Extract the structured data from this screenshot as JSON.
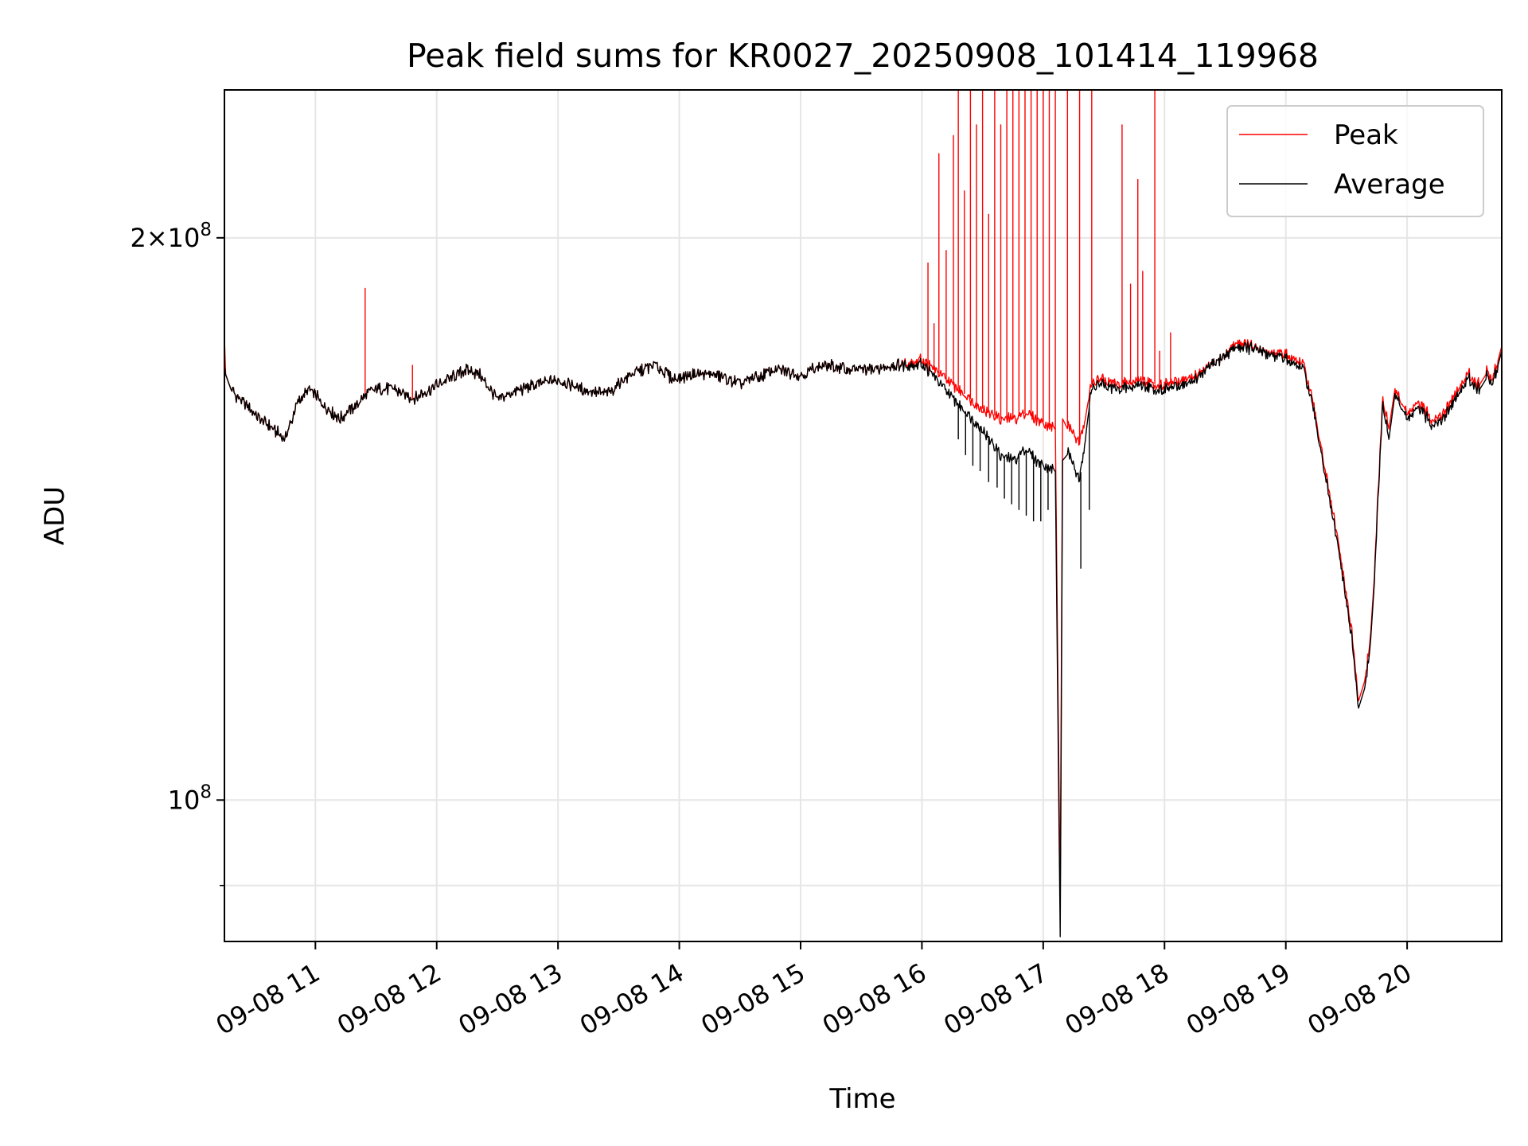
{
  "chart_data": {
    "type": "line",
    "title": "Peak field sums for KR0027_20250908_101414_119968",
    "xlabel": "Time",
    "ylabel": "ADU",
    "x_range_hours": [
      10.25,
      20.78
    ],
    "ylim": [
      84000000,
      240000000
    ],
    "y_scale": "log",
    "grid": true,
    "legend_position": "top-right",
    "x_ticks": [
      "09-08 11",
      "09-08 12",
      "09-08 13",
      "09-08 14",
      "09-08 15",
      "09-08 16",
      "09-08 17",
      "09-08 18",
      "09-08 19",
      "09-08 20"
    ],
    "y_ticks": [
      {
        "base": "2×10",
        "exp": "8",
        "value": 200000000
      },
      {
        "base": "10",
        "exp": "8",
        "value": 100000000
      }
    ],
    "series": [
      {
        "name": "Peak",
        "color": "#ff0000",
        "x_hours": [
          10.25,
          10.26,
          10.3,
          10.45,
          10.6,
          10.75,
          10.85,
          10.95,
          11.1,
          11.2,
          11.35,
          11.42,
          11.5,
          11.65,
          11.8,
          11.95,
          12.1,
          12.25,
          12.35,
          12.5,
          12.7,
          13.0,
          13.2,
          13.4,
          13.6,
          13.8,
          13.95,
          14.1,
          14.3,
          14.5,
          14.8,
          15.0,
          15.2,
          15.4,
          15.6,
          15.8,
          16.0,
          16.05,
          16.15,
          16.3,
          16.5,
          16.65,
          16.75,
          16.85,
          16.95,
          17.1,
          17.14,
          17.16,
          17.2,
          17.3,
          17.4,
          17.45,
          17.6,
          17.7,
          17.8,
          17.9,
          18.0,
          18.2,
          18.4,
          18.5,
          18.6,
          18.8,
          19.0,
          19.15,
          19.25,
          19.35,
          19.45,
          19.55,
          19.6,
          19.65,
          19.7,
          19.73,
          19.8,
          19.85,
          19.9,
          20.0,
          20.1,
          20.2,
          20.3,
          20.4,
          20.5,
          20.55,
          20.6,
          20.65,
          20.7,
          20.75,
          20.78
        ],
        "values": [
          177000000,
          169000000,
          166000000,
          162000000,
          159000000,
          156000000,
          163000000,
          166000000,
          162000000,
          160000000,
          163000000,
          165000000,
          166000000,
          166000000,
          164000000,
          166000000,
          168000000,
          170000000,
          169000000,
          164000000,
          166000000,
          168000000,
          166000000,
          165000000,
          169000000,
          171000000,
          168000000,
          169000000,
          169000000,
          167000000,
          170000000,
          169000000,
          171000000,
          170000000,
          170000000,
          171000000,
          172000000,
          171000000,
          169000000,
          166000000,
          162000000,
          160000000,
          160000000,
          161000000,
          160000000,
          158000000,
          88000000,
          160000000,
          159000000,
          155000000,
          167000000,
          168000000,
          167000000,
          167000000,
          168000000,
          167000000,
          167000000,
          168000000,
          171000000,
          173000000,
          176000000,
          174000000,
          173000000,
          171000000,
          160000000,
          147000000,
          135000000,
          122000000,
          113000000,
          115000000,
          123000000,
          132000000,
          164000000,
          158000000,
          166000000,
          161000000,
          163000000,
          160000000,
          161000000,
          165000000,
          169000000,
          168000000,
          167000000,
          170000000,
          168000000,
          172000000,
          175000000
        ],
        "spikes": [
          {
            "x": 11.41,
            "value": 188000000
          },
          {
            "x": 11.8,
            "value": 171000000
          },
          {
            "x": 16.05,
            "value": 194000000
          },
          {
            "x": 16.1,
            "value": 180000000
          },
          {
            "x": 16.14,
            "value": 222000000
          },
          {
            "x": 16.2,
            "value": 197000000
          },
          {
            "x": 16.26,
            "value": 227000000
          },
          {
            "x": 16.3,
            "value": 240000000
          },
          {
            "x": 16.35,
            "value": 212000000
          },
          {
            "x": 16.4,
            "value": 240000000
          },
          {
            "x": 16.45,
            "value": 230000000
          },
          {
            "x": 16.5,
            "value": 240000000
          },
          {
            "x": 16.55,
            "value": 206000000
          },
          {
            "x": 16.6,
            "value": 240000000
          },
          {
            "x": 16.65,
            "value": 230000000
          },
          {
            "x": 16.7,
            "value": 240000000
          },
          {
            "x": 16.75,
            "value": 240000000
          },
          {
            "x": 16.8,
            "value": 240000000
          },
          {
            "x": 16.85,
            "value": 240000000
          },
          {
            "x": 16.9,
            "value": 240000000
          },
          {
            "x": 16.95,
            "value": 240000000
          },
          {
            "x": 17.0,
            "value": 240000000
          },
          {
            "x": 17.05,
            "value": 240000000
          },
          {
            "x": 17.1,
            "value": 240000000
          },
          {
            "x": 17.2,
            "value": 240000000
          },
          {
            "x": 17.3,
            "value": 240000000
          },
          {
            "x": 17.4,
            "value": 240000000
          },
          {
            "x": 17.65,
            "value": 230000000
          },
          {
            "x": 17.72,
            "value": 189000000
          },
          {
            "x": 17.78,
            "value": 215000000
          },
          {
            "x": 17.82,
            "value": 192000000
          },
          {
            "x": 17.92,
            "value": 240000000
          },
          {
            "x": 17.96,
            "value": 174000000
          },
          {
            "x": 18.05,
            "value": 178000000
          }
        ]
      },
      {
        "name": "Average",
        "color": "#000000",
        "x_hours": [
          10.25,
          10.26,
          10.3,
          10.45,
          10.6,
          10.75,
          10.85,
          10.95,
          11.1,
          11.2,
          11.35,
          11.42,
          11.5,
          11.65,
          11.8,
          11.95,
          12.1,
          12.25,
          12.35,
          12.5,
          12.7,
          13.0,
          13.2,
          13.4,
          13.6,
          13.8,
          13.95,
          14.1,
          14.3,
          14.5,
          14.8,
          15.0,
          15.2,
          15.4,
          15.6,
          15.8,
          16.0,
          16.05,
          16.15,
          16.3,
          16.5,
          16.65,
          16.75,
          16.85,
          16.95,
          17.1,
          17.14,
          17.16,
          17.2,
          17.3,
          17.4,
          17.45,
          17.6,
          17.7,
          17.8,
          17.9,
          18.0,
          18.2,
          18.4,
          18.5,
          18.6,
          18.8,
          19.0,
          19.15,
          19.25,
          19.35,
          19.45,
          19.55,
          19.6,
          19.65,
          19.7,
          19.73,
          19.8,
          19.85,
          19.9,
          20.0,
          20.1,
          20.2,
          20.3,
          20.4,
          20.5,
          20.55,
          20.6,
          20.65,
          20.7,
          20.75,
          20.78
        ],
        "values": [
          171000000,
          169000000,
          166000000,
          162000000,
          159000000,
          156000000,
          163000000,
          166000000,
          162000000,
          160000000,
          163000000,
          165000000,
          166000000,
          166000000,
          164000000,
          166000000,
          168000000,
          170000000,
          169000000,
          164000000,
          166000000,
          168000000,
          166000000,
          165000000,
          169000000,
          171000000,
          168000000,
          169000000,
          169000000,
          167000000,
          170000000,
          169000000,
          171000000,
          170000000,
          170000000,
          171000000,
          171000000,
          170000000,
          167000000,
          163000000,
          158000000,
          153000000,
          152000000,
          154000000,
          152000000,
          150000000,
          84500000,
          152000000,
          154000000,
          148000000,
          166000000,
          167000000,
          166000000,
          166000000,
          167000000,
          166000000,
          166000000,
          167000000,
          171000000,
          173000000,
          175000000,
          174000000,
          172000000,
          170000000,
          159000000,
          146000000,
          134000000,
          121000000,
          112000000,
          114000000,
          122000000,
          131000000,
          163000000,
          156000000,
          165000000,
          160000000,
          162000000,
          159000000,
          160000000,
          164000000,
          168000000,
          167000000,
          166000000,
          169000000,
          167000000,
          171000000,
          174000000
        ],
        "dips": [
          {
            "x": 16.3,
            "value": 156000000
          },
          {
            "x": 16.36,
            "value": 153000000
          },
          {
            "x": 16.42,
            "value": 151000000
          },
          {
            "x": 16.48,
            "value": 150000000
          },
          {
            "x": 16.55,
            "value": 148000000
          },
          {
            "x": 16.62,
            "value": 147000000
          },
          {
            "x": 16.68,
            "value": 145000000
          },
          {
            "x": 16.74,
            "value": 144000000
          },
          {
            "x": 16.8,
            "value": 143000000
          },
          {
            "x": 16.86,
            "value": 142000000
          },
          {
            "x": 16.92,
            "value": 141000000
          },
          {
            "x": 16.98,
            "value": 141000000
          },
          {
            "x": 17.04,
            "value": 143000000
          },
          {
            "x": 17.31,
            "value": 133000000
          },
          {
            "x": 17.38,
            "value": 143000000
          }
        ]
      }
    ]
  }
}
